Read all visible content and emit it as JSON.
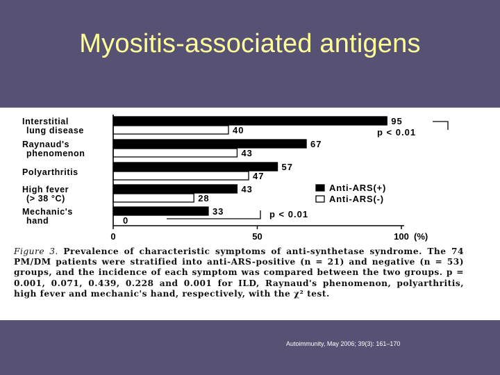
{
  "slide": {
    "title": "Myositis-associated antigens",
    "citation": "Autoimmunity, May 2006; 39(3): 161–170"
  },
  "figure": {
    "caption_label": "Figure 3.",
    "caption_text": "Prevalence of characteristic symptoms of anti-synthetase syndrome. The 74 PM/DM patients were stratified into anti-ARS-positive (n = 21) and negative (n = 53) groups, and the incidence of each symptom was compared between the two groups. p = 0.001, 0.071, 0.439, 0.228 and 0.001 for ILD, Raynaud's phenomenon, polyarthritis, high fever and mechanic's hand, respectively, with the χ² test."
  },
  "chart_data": {
    "type": "bar",
    "orientation": "horizontal",
    "categories": [
      [
        "Interstitial",
        "lung disease"
      ],
      [
        "Raynaud's",
        "phenomenon"
      ],
      [
        "Polyarthritis"
      ],
      [
        "High fever",
        "(> 38 °C)"
      ],
      [
        "Mechanic's",
        "hand"
      ]
    ],
    "series": [
      {
        "name": "Anti-ARS(+)",
        "values": [
          95,
          67,
          57,
          43,
          33
        ],
        "color": "#000000"
      },
      {
        "name": "Anti-ARS(-)",
        "values": [
          40,
          43,
          47,
          28,
          0
        ],
        "color": "#ffffff"
      }
    ],
    "xlim": [
      0,
      100
    ],
    "xticks": [
      "0",
      "50",
      "100"
    ],
    "xunit": "(%)",
    "annotations": [
      "p < 0.01",
      "p < 0.01"
    ],
    "legend_position": "right"
  }
}
